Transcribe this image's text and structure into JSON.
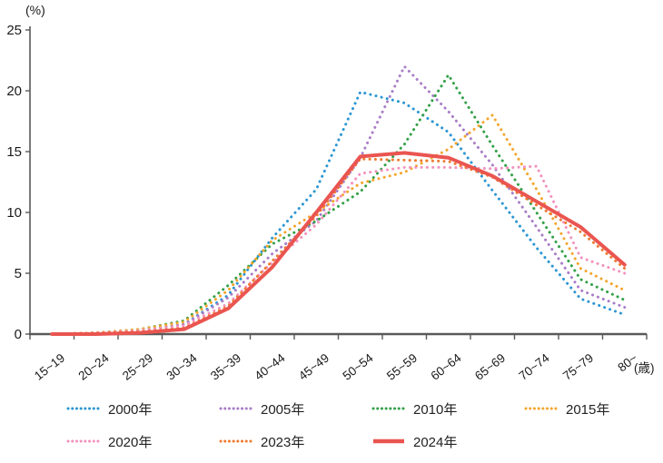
{
  "chart_data": {
    "type": "line",
    "title": "",
    "ylabel": "(%)",
    "xlabel": "(歳)",
    "ylim": [
      0,
      25
    ],
    "yticks": [
      0,
      5,
      10,
      15,
      20,
      25
    ],
    "grid": false,
    "legend_position": "bottom",
    "axis_color": "#595959",
    "categories": [
      "15~19",
      "20~24",
      "25~29",
      "30~34",
      "35~39",
      "40~44",
      "45~49",
      "50~54",
      "55~59",
      "60~64",
      "65~69",
      "70~74",
      "75~79",
      "80~"
    ],
    "series": [
      {
        "name": "2000年",
        "color": "#2b96d3",
        "style": "dotted",
        "values": [
          0.0,
          0.1,
          0.3,
          0.8,
          3.2,
          7.9,
          11.9,
          19.9,
          19.0,
          16.6,
          11.8,
          7.1,
          2.9,
          1.6
        ]
      },
      {
        "name": "2005年",
        "color": "#a87dc7",
        "style": "dotted",
        "values": [
          0.0,
          0.1,
          0.3,
          0.8,
          3.0,
          6.6,
          9.3,
          14.5,
          22.0,
          18.3,
          13.9,
          8.8,
          3.6,
          2.2
        ]
      },
      {
        "name": "2010年",
        "color": "#33a048",
        "style": "dotted",
        "values": [
          0.0,
          0.1,
          0.4,
          1.1,
          4.0,
          7.4,
          9.3,
          11.7,
          15.6,
          21.3,
          15.5,
          10.0,
          4.5,
          2.8
        ]
      },
      {
        "name": "2015年",
        "color": "#f4a52d",
        "style": "dotted",
        "values": [
          0.0,
          0.1,
          0.4,
          1.0,
          3.6,
          7.7,
          10.0,
          12.4,
          13.3,
          15.2,
          18.0,
          11.9,
          5.4,
          3.6
        ]
      },
      {
        "name": "2020年",
        "color": "#f291be",
        "style": "dotted",
        "values": [
          0.0,
          0.1,
          0.3,
          0.7,
          2.5,
          5.9,
          9.0,
          13.2,
          13.7,
          13.7,
          13.6,
          13.8,
          6.3,
          5.0
        ]
      },
      {
        "name": "2023年",
        "color": "#ef7a30",
        "style": "dotted",
        "values": [
          0.0,
          0.1,
          0.2,
          0.5,
          2.3,
          6.0,
          9.7,
          14.4,
          14.3,
          14.2,
          12.9,
          10.6,
          8.4,
          5.4
        ]
      },
      {
        "name": "2024年",
        "color": "#ea5550",
        "style": "solid",
        "values": [
          0.0,
          0.0,
          0.1,
          0.4,
          2.1,
          5.5,
          10.0,
          14.6,
          14.9,
          14.5,
          13.0,
          10.9,
          8.8,
          5.7
        ]
      }
    ]
  }
}
